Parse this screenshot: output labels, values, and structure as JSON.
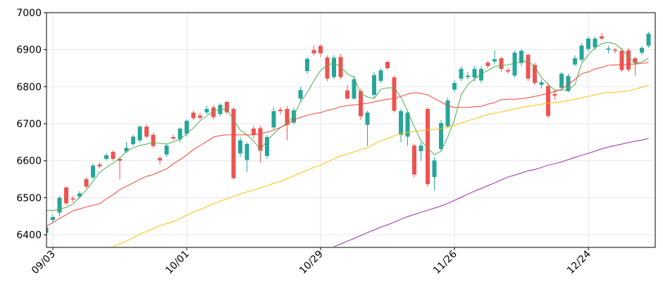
{
  "chart_data": {
    "type": "candlestick",
    "categories": [
      null,
      "09/03",
      null,
      null,
      null,
      null,
      null,
      null,
      null,
      null,
      null,
      null,
      null,
      null,
      null,
      null,
      null,
      null,
      null,
      null,
      null,
      "10/01",
      null,
      null,
      null,
      null,
      null,
      null,
      null,
      null,
      null,
      null,
      null,
      null,
      null,
      null,
      null,
      null,
      null,
      null,
      null,
      "10/29",
      null,
      null,
      null,
      null,
      null,
      null,
      null,
      null,
      null,
      null,
      null,
      null,
      null,
      null,
      null,
      null,
      null,
      null,
      null,
      "11/26",
      null,
      null,
      null,
      null,
      null,
      null,
      null,
      null,
      null,
      null,
      null,
      null,
      null,
      null,
      null,
      null,
      null,
      null,
      null,
      "12/24",
      null,
      null,
      null,
      null,
      null,
      null,
      null,
      null,
      null
    ],
    "open": [
      6405,
      6440,
      6460,
      6528,
      6498,
      6503,
      6550,
      6555,
      6590,
      6605,
      6624,
      6605,
      6625,
      6645,
      6655,
      6692,
      6670,
      6607,
      6617,
      6664,
      6658,
      6673,
      6730,
      6722,
      6731,
      6744,
      6726,
      6759,
      6740,
      6620,
      6602,
      6687,
      6688,
      6613,
      6690,
      6738,
      6740,
      6703,
      6768,
      6842,
      6899,
      6910,
      6879,
      6826,
      6880,
      6790,
      6768,
      6788,
      6697,
      6778,
      6816,
      6867,
      6825,
      6670,
      6665,
      6641,
      6626,
      6740,
      6556,
      6632,
      6693,
      6792,
      6822,
      6826,
      6825,
      6817,
      6865,
      6868,
      6877,
      6845,
      6830,
      6864,
      6886,
      6859,
      6805,
      6802,
      6780,
      6797,
      6788,
      6860,
      6873,
      6902,
      6906,
      6936,
      6900,
      6900,
      6897,
      6898,
      6877,
      6892,
      6911
    ],
    "high": [
      6425,
      6455,
      6505,
      6530,
      6505,
      6518,
      6555,
      6592,
      6595,
      6620,
      6628,
      6610,
      6650,
      6670,
      6695,
      6698,
      6675,
      6612,
      6645,
      6670,
      6690,
      6712,
      6735,
      6730,
      6748,
      6750,
      6755,
      6762,
      6745,
      6665,
      6650,
      6695,
      6695,
      6670,
      6745,
      6745,
      6748,
      6742,
      6800,
      6880,
      6912,
      6915,
      6885,
      6885,
      6888,
      6805,
      6830,
      6795,
      6735,
      6840,
      6850,
      6870,
      6830,
      6740,
      6735,
      6645,
      6650,
      6745,
      6610,
      6710,
      6770,
      6818,
      6855,
      6840,
      6855,
      6855,
      6870,
      6898,
      6880,
      6850,
      6898,
      6902,
      6890,
      6865,
      6820,
      6810,
      6790,
      6840,
      6835,
      6885,
      6918,
      6935,
      6935,
      6945,
      6910,
      6905,
      6905,
      6905,
      6880,
      6910,
      6948
    ],
    "low": [
      6400,
      6430,
      6450,
      6480,
      6488,
      6498,
      6525,
      6550,
      6580,
      6600,
      6600,
      6550,
      6620,
      6640,
      6650,
      6660,
      6635,
      6590,
      6610,
      6655,
      6650,
      6665,
      6710,
      6712,
      6725,
      6712,
      6720,
      6725,
      6550,
      6610,
      6570,
      6660,
      6595,
      6605,
      6685,
      6725,
      6655,
      6698,
      6760,
      6835,
      6885,
      6880,
      6815,
      6820,
      6820,
      6765,
      6765,
      6710,
      6640,
      6770,
      6810,
      6845,
      6730,
      6650,
      6640,
      6555,
      6600,
      6530,
      6520,
      6625,
      6688,
      6785,
      6815,
      6820,
      6815,
      6810,
      6850,
      6860,
      6840,
      6835,
      6825,
      6855,
      6815,
      6805,
      6795,
      6715,
      6765,
      6790,
      6785,
      6855,
      6868,
      6895,
      6900,
      6925,
      6890,
      6890,
      6840,
      6840,
      6830,
      6885,
      6905
    ],
    "close": [
      6420,
      6448,
      6500,
      6485,
      6495,
      6512,
      6530,
      6587,
      6585,
      6615,
      6605,
      6600,
      6635,
      6665,
      6692,
      6665,
      6640,
      6601,
      6641,
      6660,
      6687,
      6708,
      6715,
      6716,
      6740,
      6718,
      6751,
      6731,
      6553,
      6655,
      6645,
      6670,
      6627,
      6664,
      6734,
      6734,
      6697,
      6736,
      6791,
      6875,
      6890,
      6890,
      6822,
      6878,
      6826,
      6768,
      6820,
      6720,
      6730,
      6831,
      6844,
      6850,
      6735,
      6734,
      6730,
      6563,
      6641,
      6537,
      6601,
      6702,
      6763,
      6810,
      6848,
      6830,
      6848,
      6848,
      6856,
      6874,
      6848,
      6841,
      6892,
      6897,
      6822,
      6810,
      6812,
      6721,
      6776,
      6835,
      6829,
      6877,
      6911,
      6930,
      6930,
      6930,
      6903,
      6897,
      6845,
      6846,
      6864,
      6905,
      6943
    ],
    "up_color": "#26a69a",
    "down_color": "#ef5350",
    "lines": [
      {
        "color": "#4caf50",
        "values": [
          6466,
          6465,
          6470,
          6474,
          6483,
          6502,
          6521,
          6544,
          6569,
          6582,
          6594,
          6607,
          6626,
          6635,
          6641,
          6645,
          6649,
          6647,
          6645,
          6651,
          6658,
          6673,
          6689,
          6708,
          6721,
          6734,
          6738,
          6740,
          6711,
          6683,
          6670,
          6654,
          6630,
          6654,
          6673,
          6689,
          6702,
          6721,
          6759,
          6784,
          6816,
          6844,
          6859,
          6863,
          6854,
          6835,
          6825,
          6782,
          6772,
          6768,
          6793,
          6797,
          6797,
          6772,
          6734,
          6692,
          6654,
          6635,
          6616,
          6626,
          6664,
          6711,
          6778,
          6806,
          6821,
          6835,
          6844,
          6854,
          6858,
          6859,
          6863,
          6867,
          6869,
          6854,
          6825,
          6806,
          6791,
          6791,
          6791,
          6806,
          6863,
          6886,
          6905,
          6916,
          6920,
          6916,
          6901,
          6882,
          6863,
          6867,
          6877
        ]
      },
      {
        "color": "#f44336",
        "values": [
          6423,
          6433,
          6444,
          6454,
          6465,
          6470,
          6475,
          6480,
          6484,
          6497,
          6508,
          6522,
          6531,
          6540,
          6550,
          6558,
          6563,
          6571,
          6578,
          6592,
          6603,
          6616,
          6630,
          6641,
          6652,
          6664,
          6668,
          6670,
          6670,
          6670,
          6670,
          6670,
          6673,
          6677,
          6683,
          6690,
          6698,
          6711,
          6717,
          6723,
          6727,
          6730,
          6736,
          6740,
          6746,
          6749,
          6751,
          6753,
          6755,
          6759,
          6763,
          6766,
          6768,
          6774,
          6780,
          6784,
          6782,
          6778,
          6768,
          6759,
          6749,
          6744,
          6744,
          6744,
          6746,
          6747,
          6753,
          6757,
          6765,
          6766,
          6766,
          6768,
          6770,
          6774,
          6778,
          6782,
          6787,
          6793,
          6806,
          6820,
          6835,
          6840,
          6848,
          6852,
          6858,
          6859,
          6859,
          6861,
          6861,
          6863,
          6865
        ]
      },
      {
        "color": "#ffc107",
        "values": [
          null,
          null,
          null,
          null,
          null,
          null,
          null,
          null,
          null,
          null,
          6368,
          6375,
          6383,
          6392,
          6402,
          6409,
          6417,
          6425,
          6430,
          6436,
          6444,
          6453,
          6461,
          6468,
          6476,
          6484,
          6491,
          6497,
          6504,
          6510,
          6516,
          6521,
          6527,
          6533,
          6539,
          6544,
          6552,
          6559,
          6567,
          6575,
          6582,
          6588,
          6597,
          6605,
          6613,
          6618,
          6624,
          6630,
          6635,
          6645,
          6654,
          6660,
          6668,
          6673,
          6677,
          6679,
          6681,
          6683,
          6685,
          6687,
          6690,
          6696,
          6702,
          6708,
          6713,
          6719,
          6725,
          6728,
          6732,
          6736,
          6740,
          6744,
          6747,
          6749,
          6753,
          6755,
          6757,
          6759,
          6763,
          6766,
          6770,
          6774,
          6778,
          6782,
          6784,
          6785,
          6787,
          6789,
          6793,
          6799,
          6803
        ]
      },
      {
        "color": "#9c27b0",
        "values": [
          null,
          null,
          null,
          null,
          null,
          null,
          null,
          null,
          null,
          null,
          null,
          null,
          null,
          null,
          null,
          null,
          null,
          null,
          null,
          null,
          null,
          null,
          null,
          null,
          null,
          null,
          null,
          null,
          null,
          null,
          null,
          null,
          null,
          null,
          null,
          null,
          null,
          null,
          null,
          null,
          null,
          null,
          null,
          6368,
          6375,
          6383,
          6390,
          6398,
          6406,
          6413,
          6421,
          6427,
          6434,
          6442,
          6449,
          6455,
          6461,
          6466,
          6472,
          6478,
          6485,
          6493,
          6501,
          6510,
          6518,
          6525,
          6533,
          6540,
          6548,
          6556,
          6561,
          6567,
          6573,
          6576,
          6582,
          6588,
          6592,
          6597,
          6603,
          6609,
          6615,
          6620,
          6626,
          6632,
          6637,
          6641,
          6645,
          6649,
          6653,
          6656,
          6660
        ]
      }
    ],
    "ylim": [
      6366,
      7000
    ],
    "yticks": [
      6400,
      6500,
      6600,
      6700,
      6800,
      6900,
      7000
    ],
    "grid": true
  }
}
